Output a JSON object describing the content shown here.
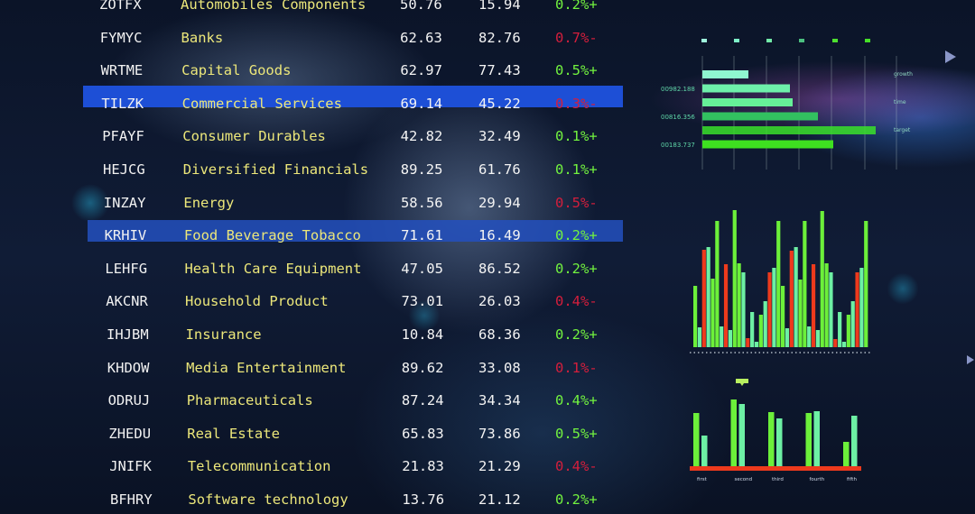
{
  "table": {
    "rows": [
      {
        "ticker": "ZOTFX",
        "name": "Automobiles Components",
        "value1": "50.76",
        "value2": "15.94",
        "change": "0.2%+",
        "direction": "up",
        "highlight": "none"
      },
      {
        "ticker": "FYMYC",
        "name": "Banks",
        "value1": "62.63",
        "value2": "82.76",
        "change": "0.7%-",
        "direction": "down",
        "highlight": "none"
      },
      {
        "ticker": "WRTME",
        "name": "Capital Goods",
        "value1": "62.97",
        "value2": "77.43",
        "change": "0.5%+",
        "direction": "up",
        "highlight": "none"
      },
      {
        "ticker": "TILZK",
        "name": "Commercial Services",
        "value1": "69.14",
        "value2": "45.22",
        "change": "0.3%-",
        "direction": "down",
        "highlight": "bright"
      },
      {
        "ticker": "PFAYF",
        "name": "Consumer Durables",
        "value1": "42.82",
        "value2": "32.49",
        "change": "0.1%+",
        "direction": "up",
        "highlight": "none"
      },
      {
        "ticker": "HEJCG",
        "name": "Diversified Financials",
        "value1": "89.25",
        "value2": "61.76",
        "change": "0.1%+",
        "direction": "up",
        "highlight": "none"
      },
      {
        "ticker": "INZAY",
        "name": "Energy",
        "value1": "58.56",
        "value2": "29.94",
        "change": "0.5%-",
        "direction": "down",
        "highlight": "none"
      },
      {
        "ticker": "KRHIV",
        "name": "Food Beverage Tobacco",
        "value1": "71.61",
        "value2": "16.49",
        "change": "0.2%+",
        "direction": "up",
        "highlight": "dim"
      },
      {
        "ticker": "LEHFG",
        "name": "Health Care Equipment",
        "value1": "47.05",
        "value2": "86.52",
        "change": "0.2%+",
        "direction": "up",
        "highlight": "none"
      },
      {
        "ticker": "AKCNR",
        "name": "Household Product",
        "value1": "73.01",
        "value2": "26.03",
        "change": "0.4%-",
        "direction": "down",
        "highlight": "none"
      },
      {
        "ticker": "IHJBM",
        "name": "Insurance",
        "value1": "10.84",
        "value2": "68.36",
        "change": "0.2%+",
        "direction": "up",
        "highlight": "none"
      },
      {
        "ticker": "KHDOW",
        "name": "Media Entertainment",
        "value1": "89.62",
        "value2": "33.08",
        "change": "0.1%-",
        "direction": "down",
        "highlight": "none"
      },
      {
        "ticker": "ODRUJ",
        "name": "Pharmaceuticals",
        "value1": "87.24",
        "value2": "34.34",
        "change": "0.4%+",
        "direction": "up",
        "highlight": "none"
      },
      {
        "ticker": "ZHEDU",
        "name": "Real Estate",
        "value1": "65.83",
        "value2": "73.86",
        "change": "0.5%+",
        "direction": "up",
        "highlight": "none"
      },
      {
        "ticker": "JNIFK",
        "name": "Telecommunication",
        "value1": "21.83",
        "value2": "21.29",
        "change": "0.4%-",
        "direction": "down",
        "highlight": "none"
      },
      {
        "ticker": "BFHRY",
        "name": "Software technology",
        "value1": "13.76",
        "value2": "21.12",
        "change": "0.2%+",
        "direction": "up",
        "highlight": "none"
      }
    ]
  },
  "colors": {
    "ticker": "#f2f2f2",
    "name": "#ece77a",
    "up": "#72f23f",
    "down": "#d41e3c",
    "highlight": "#1d4fd6",
    "bar_red": "#ee3a1c",
    "bar_green": "#6cf03a",
    "bar_mint": "#6df0a4"
  },
  "hbar_chart": {
    "left_labels": [
      "00982.188",
      "00816.356",
      "00183.737"
    ],
    "right_labels": [
      "growth",
      "time",
      "target"
    ],
    "values": [
      51,
      97,
      100,
      128,
      192,
      145
    ],
    "colors": [
      "#8ff7d0",
      "#6ef0aa",
      "#66ef98",
      "#32c060",
      "#3ae02a",
      "#3ee020"
    ]
  },
  "column_chart": {
    "values": [
      68,
      22,
      108,
      111,
      76,
      140,
      23,
      92,
      19,
      152,
      93,
      83,
      10,
      39,
      6,
      36,
      51,
      83,
      88,
      140,
      68,
      21,
      107,
      111,
      75,
      140,
      23,
      92,
      19,
      151,
      93,
      83,
      9,
      39,
      6,
      36,
      51,
      83,
      88,
      140
    ],
    "kinds": [
      "g",
      "m",
      "r",
      "m",
      "g",
      "g",
      "m",
      "r",
      "m",
      "g",
      "g",
      "m",
      "r",
      "m",
      "m",
      "g",
      "m",
      "r",
      "m",
      "g",
      "g",
      "m",
      "r",
      "m",
      "g",
      "g",
      "m",
      "r",
      "m",
      "g",
      "g",
      "m",
      "r",
      "m",
      "m",
      "g",
      "m",
      "r",
      "m",
      "g"
    ]
  },
  "pair_chart": {
    "categories": [
      "first",
      "second",
      "third",
      "fourth",
      "fifth"
    ],
    "values": [
      [
        60,
        35
      ],
      [
        75,
        70
      ],
      [
        61,
        54
      ],
      [
        60,
        62
      ],
      [
        28,
        57
      ]
    ]
  }
}
